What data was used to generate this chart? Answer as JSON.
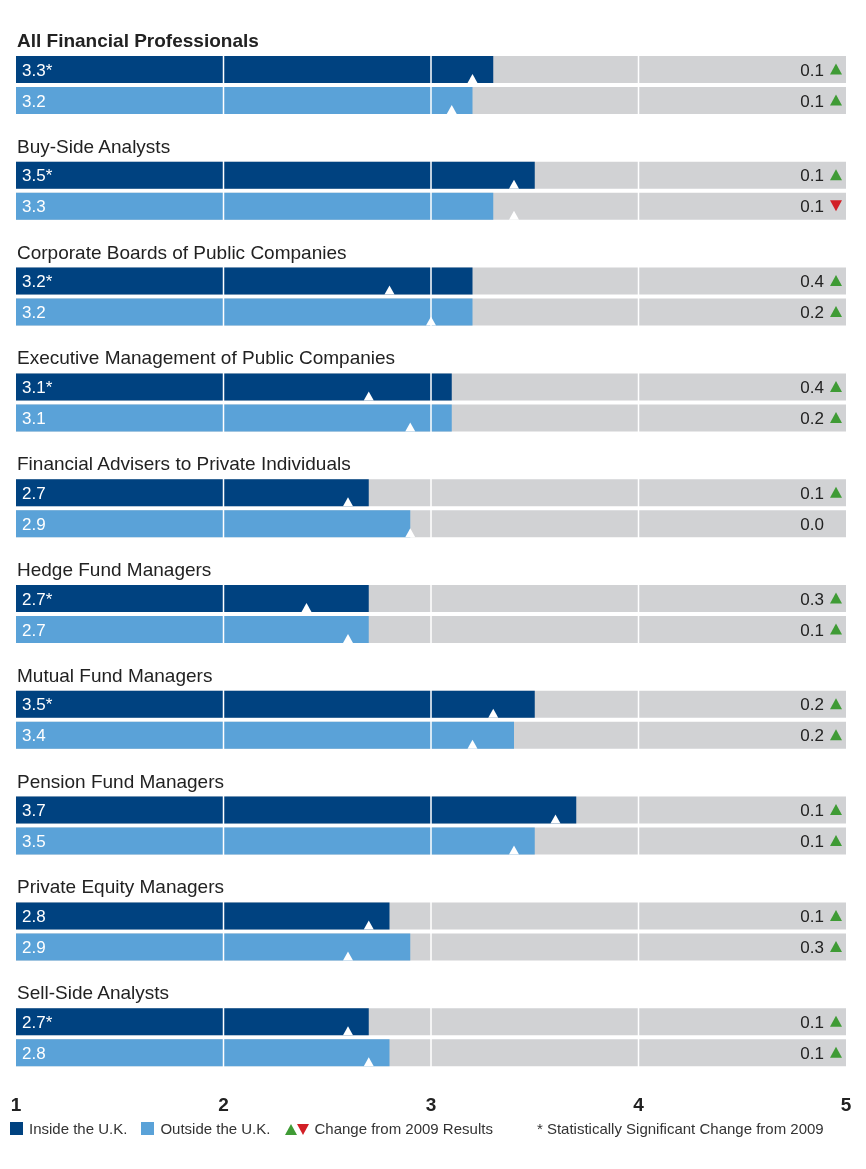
{
  "chart_data": {
    "type": "bar",
    "orientation": "horizontal",
    "categories": [
      "All Financial Professionals",
      "Buy-Side Analysts",
      "Corporate Boards of Public Companies",
      "Executive Management of Public Companies",
      "Financial Advisers to Private Individuals",
      "Hedge Fund Managers",
      "Mutual Fund Managers",
      "Pension Fund Managers",
      "Private Equity Managers",
      "Sell-Side Analysts"
    ],
    "series": [
      {
        "name": "Inside the U.K.",
        "color": "#004280",
        "values": [
          3.3,
          3.5,
          3.2,
          3.1,
          2.7,
          2.7,
          3.5,
          3.7,
          2.8,
          2.7
        ],
        "value_labels": [
          "3.3*",
          "3.5*",
          "3.2*",
          "3.1*",
          "2.7",
          "2.7*",
          "3.5*",
          "3.7",
          "2.8",
          "2.7*"
        ]
      },
      {
        "name": "Outside the U.K.",
        "color": "#5aa2d8",
        "values": [
          3.2,
          3.3,
          3.2,
          3.1,
          2.9,
          2.7,
          3.4,
          3.5,
          2.9,
          2.8
        ],
        "value_labels": [
          "3.2",
          "3.3",
          "3.2",
          "3.1",
          "2.9",
          "2.7",
          "3.4",
          "3.5",
          "2.9",
          "2.8"
        ]
      },
      {
        "type": "scatter",
        "color": "#ffffff",
        "values": [
          3.2,
          3.4,
          2.8,
          2.7,
          2.6,
          2.4,
          3.3,
          3.6,
          2.7,
          2.6
        ]
      },
      {
        "type": "scatter",
        "color": "#ffffff",
        "values": [
          3.1,
          3.4,
          3.0,
          2.9,
          2.9,
          2.6,
          3.2,
          3.4,
          2.6,
          2.7
        ]
      }
    ],
    "marker": "triangle",
    "xlim": [
      1,
      5
    ],
    "xticks": [
      1,
      2,
      3,
      4,
      5
    ],
    "grid": "x",
    "legend": "bottom",
    "annotations": [
      "0.1",
      "0.1",
      "0.1",
      "0.1",
      "0.4",
      "0.2",
      "0.4",
      "0.2",
      "0.1",
      "0.0",
      "0.3",
      "0.1",
      "0.2",
      "0.2",
      "0.1",
      "0.1",
      "0.1",
      "0.3",
      "0.1",
      "0.1",
      "Change from 2009 Results",
      "* Statistically Significant Change from 2009"
    ]
  }
}
